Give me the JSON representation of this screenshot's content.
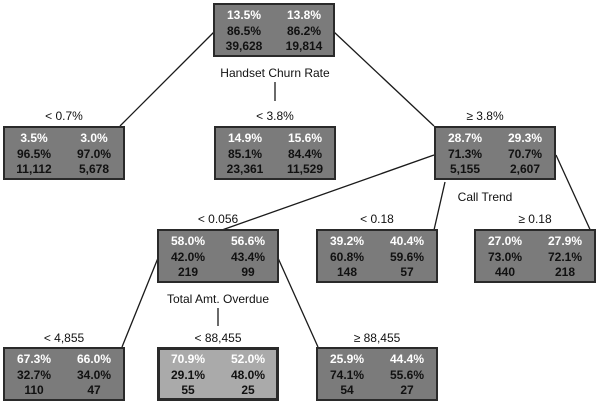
{
  "nodes": [
    {
      "r0": [
        "13.5%",
        "13.8%"
      ],
      "r1": [
        "86.5%",
        "86.2%"
      ],
      "r2": [
        "39,628",
        "19,814"
      ]
    },
    {
      "r0": [
        "3.5%",
        "3.0%"
      ],
      "r1": [
        "96.5%",
        "97.0%"
      ],
      "r2": [
        "11,112",
        "5,678"
      ]
    },
    {
      "r0": [
        "14.9%",
        "15.6%"
      ],
      "r1": [
        "85.1%",
        "84.4%"
      ],
      "r2": [
        "23,361",
        "11,529"
      ]
    },
    {
      "r0": [
        "28.7%",
        "29.3%"
      ],
      "r1": [
        "71.3%",
        "70.7%"
      ],
      "r2": [
        "5,155",
        "2,607"
      ]
    },
    {
      "r0": [
        "58.0%",
        "56.6%"
      ],
      "r1": [
        "42.0%",
        "43.4%"
      ],
      "r2": [
        "219",
        "99"
      ]
    },
    {
      "r0": [
        "39.2%",
        "40.4%"
      ],
      "r1": [
        "60.8%",
        "59.6%"
      ],
      "r2": [
        "148",
        "57"
      ]
    },
    {
      "r0": [
        "27.0%",
        "27.9%"
      ],
      "r1": [
        "73.0%",
        "72.1%"
      ],
      "r2": [
        "440",
        "218"
      ]
    },
    {
      "r0": [
        "67.3%",
        "66.0%"
      ],
      "r1": [
        "32.7%",
        "34.0%"
      ],
      "r2": [
        "110",
        "47"
      ]
    },
    {
      "r0": [
        "70.9%",
        "52.0%"
      ],
      "r1": [
        "29.1%",
        "48.0%"
      ],
      "r2": [
        "55",
        "25"
      ]
    },
    {
      "r0": [
        "25.9%",
        "44.4%"
      ],
      "r1": [
        "74.1%",
        "55.6%"
      ],
      "r2": [
        "54",
        "27"
      ]
    }
  ],
  "split_labels": {
    "root": "Handset Churn Rate",
    "n3": "Call Trend",
    "n4": "Total Amt. Overdue"
  },
  "branch_labels": {
    "b1": "< 0.7%",
    "b2": "< 3.8%",
    "b3": "≥ 3.8%",
    "b4": "< 0.056",
    "b5": "< 0.18",
    "b6": "≥ 0.18",
    "b7": "< 4,855",
    "b8": "< 88,455",
    "b9": "≥ 88,455"
  }
}
